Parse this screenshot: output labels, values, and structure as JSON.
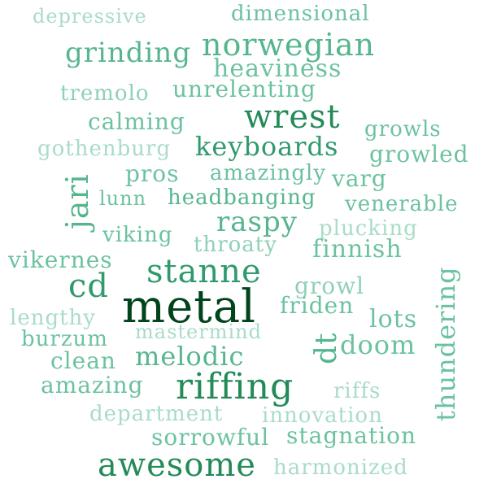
{
  "words": {
    "depressive": {
      "text": "depressive",
      "color": "#a9dcc7"
    },
    "dimensional": {
      "text": "dimensional",
      "color": "#6cc29f"
    },
    "grinding": {
      "text": "grinding",
      "color": "#55b68e"
    },
    "norwegian": {
      "text": "norwegian",
      "color": "#55b68e"
    },
    "heaviness": {
      "text": "heaviness",
      "color": "#6cc29f"
    },
    "tremolo": {
      "text": "tremolo",
      "color": "#8fd1b6"
    },
    "unrelenting": {
      "text": "unrelenting",
      "color": "#6cc29f"
    },
    "wrest": {
      "text": "wrest",
      "color": "#238a58"
    },
    "calming": {
      "text": "calming",
      "color": "#6cc29f"
    },
    "growls": {
      "text": "growls",
      "color": "#6cc29f"
    },
    "gothenburg": {
      "text": "gothenburg",
      "color": "#a9dcc7"
    },
    "keyboards": {
      "text": "keyboards",
      "color": "#2f9a6b"
    },
    "growled": {
      "text": "growled",
      "color": "#6cc29f"
    },
    "pros": {
      "text": "pros",
      "color": "#6cc29f"
    },
    "amazingly": {
      "text": "amazingly",
      "color": "#6cc29f"
    },
    "varg": {
      "text": "varg",
      "color": "#6cc29f"
    },
    "jari": {
      "text": "jari",
      "color": "#55b68e"
    },
    "lunn": {
      "text": "lunn",
      "color": "#6cc29f"
    },
    "headbanging": {
      "text": "headbanging",
      "color": "#55b68e"
    },
    "venerable": {
      "text": "venerable",
      "color": "#6cc29f"
    },
    "raspy": {
      "text": "raspy",
      "color": "#55b68e"
    },
    "plucking": {
      "text": "plucking",
      "color": "#a9dcc7"
    },
    "viking": {
      "text": "viking",
      "color": "#6cc29f"
    },
    "throaty": {
      "text": "throaty",
      "color": "#8fd1b6"
    },
    "finnish": {
      "text": "finnish",
      "color": "#6cc29f"
    },
    "vikernes": {
      "text": "vikernes",
      "color": "#6cc29f"
    },
    "stanne": {
      "text": "stanne",
      "color": "#2f9a6b"
    },
    "thundering": {
      "text": "thundering",
      "color": "#6cc29f"
    },
    "cd": {
      "text": "cd",
      "color": "#2f9a6b"
    },
    "growl": {
      "text": "growl",
      "color": "#8fd1b6"
    },
    "metal": {
      "text": "metal",
      "color": "#00441b"
    },
    "friden": {
      "text": "friden",
      "color": "#6cc29f"
    },
    "lengthy": {
      "text": "lengthy",
      "color": "#a9dcc7"
    },
    "lots": {
      "text": "lots",
      "color": "#6cc29f"
    },
    "mastermind": {
      "text": "mastermind",
      "color": "#a9dcc7"
    },
    "burzum": {
      "text": "burzum",
      "color": "#6cc29f"
    },
    "dt": {
      "text": "dt",
      "color": "#55b68e"
    },
    "doom": {
      "text": "doom",
      "color": "#6cc29f"
    },
    "clean": {
      "text": "clean",
      "color": "#6cc29f"
    },
    "melodic": {
      "text": "melodic",
      "color": "#55b68e"
    },
    "amazing": {
      "text": "amazing",
      "color": "#6cc29f"
    },
    "riffing": {
      "text": "riffing",
      "color": "#238a58"
    },
    "riffs": {
      "text": "riffs",
      "color": "#a9dcc7"
    },
    "department": {
      "text": "department",
      "color": "#a9dcc7"
    },
    "innovation": {
      "text": "innovation",
      "color": "#a9dcc7"
    },
    "sorrowful": {
      "text": "sorrowful",
      "color": "#6cc29f"
    },
    "stagnation": {
      "text": "stagnation",
      "color": "#6cc29f"
    },
    "awesome": {
      "text": "awesome",
      "color": "#238a58"
    },
    "harmonized": {
      "text": "harmonized",
      "color": "#a9dcc7"
    }
  }
}
